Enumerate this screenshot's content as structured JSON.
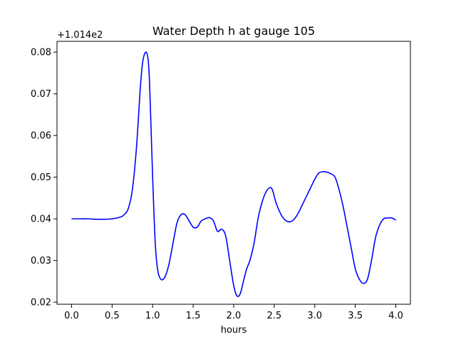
{
  "chart_data": {
    "type": "line",
    "title": "Water Depth h at gauge 105",
    "xlabel": "hours",
    "ylabel": "",
    "offset_label": "+1.014e2",
    "xlim": [
      -0.18,
      4.18
    ],
    "ylim": [
      0.0195,
      0.0826
    ],
    "xticks": [
      {
        "value": 0.0,
        "label": "0.0"
      },
      {
        "value": 0.5,
        "label": "0.5"
      },
      {
        "value": 1.0,
        "label": "1.0"
      },
      {
        "value": 1.5,
        "label": "1.5"
      },
      {
        "value": 2.0,
        "label": "2.0"
      },
      {
        "value": 2.5,
        "label": "2.5"
      },
      {
        "value": 3.0,
        "label": "3.0"
      },
      {
        "value": 3.5,
        "label": "3.5"
      },
      {
        "value": 4.0,
        "label": "4.0"
      }
    ],
    "yticks": [
      {
        "value": 0.02,
        "label": "0.02"
      },
      {
        "value": 0.03,
        "label": "0.03"
      },
      {
        "value": 0.04,
        "label": "0.04"
      },
      {
        "value": 0.05,
        "label": "0.05"
      },
      {
        "value": 0.06,
        "label": "0.06"
      },
      {
        "value": 0.07,
        "label": "0.07"
      },
      {
        "value": 0.08,
        "label": "0.08"
      }
    ],
    "grid": false,
    "series": [
      {
        "color": "#0000ff",
        "x": [
          0.0,
          0.1,
          0.2,
          0.3,
          0.4,
          0.5,
          0.6,
          0.65,
          0.7,
          0.75,
          0.8,
          0.85,
          0.88,
          0.92,
          0.95,
          0.97,
          1.0,
          1.03,
          1.06,
          1.1,
          1.15,
          1.2,
          1.25,
          1.3,
          1.35,
          1.4,
          1.45,
          1.5,
          1.55,
          1.6,
          1.65,
          1.7,
          1.75,
          1.8,
          1.85,
          1.9,
          1.95,
          2.0,
          2.04,
          2.08,
          2.12,
          2.16,
          2.2,
          2.25,
          2.3,
          2.35,
          2.4,
          2.45,
          2.48,
          2.52,
          2.56,
          2.6,
          2.65,
          2.7,
          2.75,
          2.8,
          2.85,
          2.9,
          2.95,
          3.0,
          3.05,
          3.1,
          3.15,
          3.2,
          3.25,
          3.3,
          3.35,
          3.4,
          3.45,
          3.5,
          3.55,
          3.6,
          3.65,
          3.7,
          3.75,
          3.8,
          3.85,
          3.9,
          3.95,
          4.0
        ],
        "values": [
          0.04,
          0.04,
          0.04,
          0.0399,
          0.0399,
          0.04,
          0.0404,
          0.041,
          0.0425,
          0.047,
          0.057,
          0.072,
          0.078,
          0.08,
          0.077,
          0.068,
          0.05,
          0.035,
          0.028,
          0.0255,
          0.026,
          0.029,
          0.034,
          0.039,
          0.041,
          0.041,
          0.0395,
          0.038,
          0.038,
          0.0395,
          0.04,
          0.0403,
          0.0395,
          0.037,
          0.0375,
          0.036,
          0.03,
          0.024,
          0.0215,
          0.022,
          0.025,
          0.028,
          0.03,
          0.034,
          0.04,
          0.044,
          0.0465,
          0.0475,
          0.0468,
          0.044,
          0.042,
          0.0405,
          0.0395,
          0.0393,
          0.04,
          0.0415,
          0.0435,
          0.0455,
          0.0475,
          0.0495,
          0.051,
          0.0513,
          0.0512,
          0.0508,
          0.05,
          0.047,
          0.043,
          0.038,
          0.033,
          0.028,
          0.0255,
          0.0245,
          0.0255,
          0.03,
          0.0355,
          0.0385,
          0.04,
          0.0402,
          0.0402,
          0.0397
        ]
      }
    ]
  }
}
